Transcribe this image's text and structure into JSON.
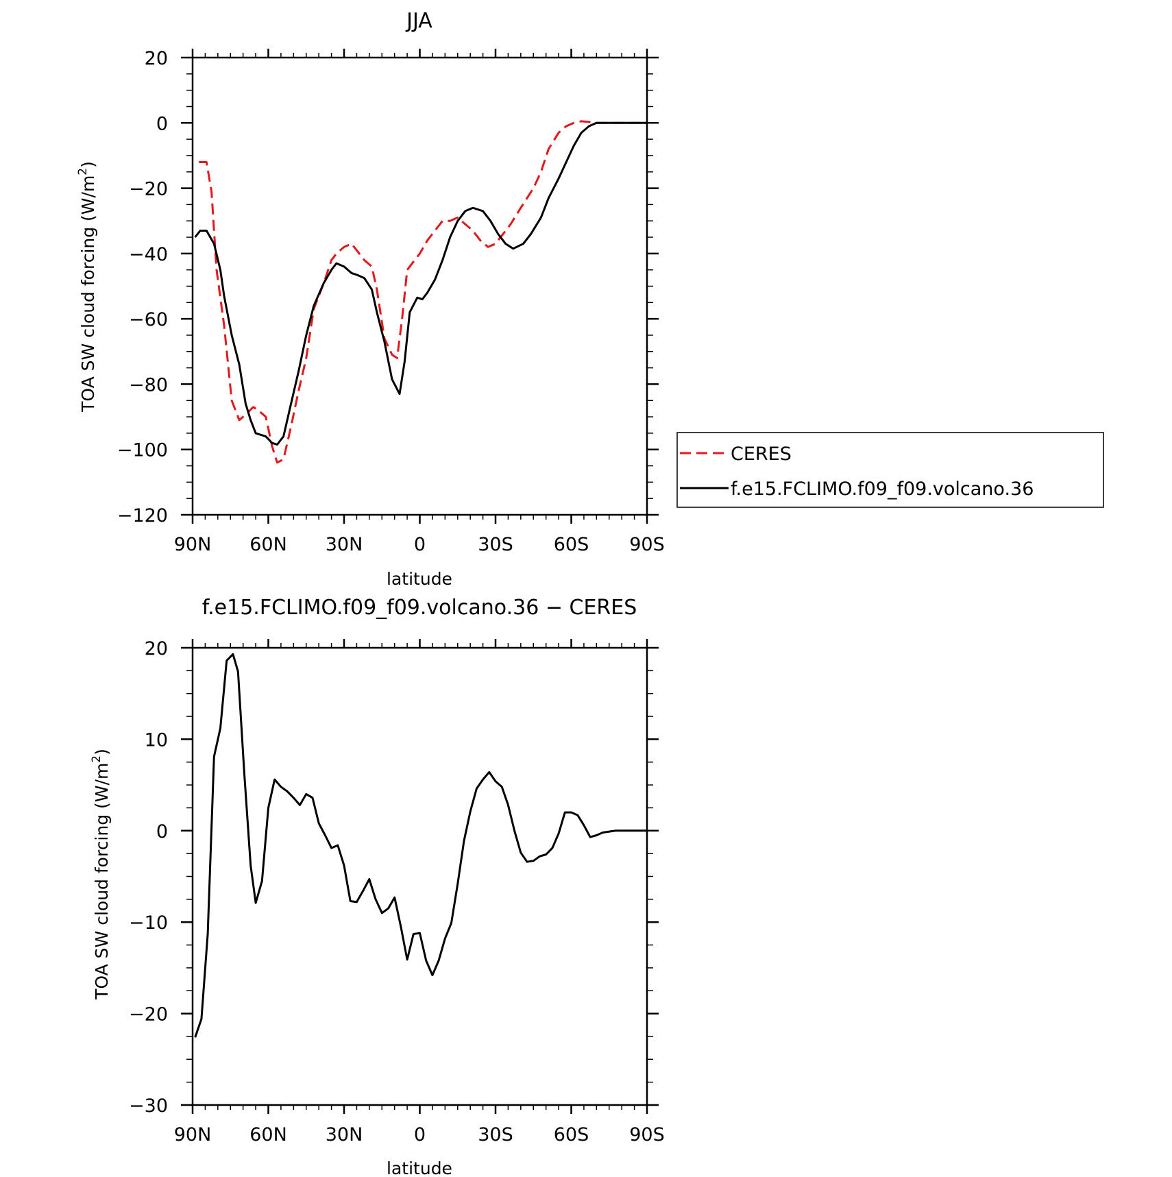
{
  "chart_data": [
    {
      "type": "line",
      "title": "JJA",
      "xlabel": "latitude",
      "ylabel": "TOA SW cloud forcing (W/m",
      "ylabel_superscript": "2",
      "ylabel_suffix": ")",
      "xlim": [
        90,
        -90
      ],
      "ylim": [
        -120,
        20
      ],
      "grid": false,
      "legend_position": "right-bottom outside",
      "x_ticks": [
        {
          "value": 90,
          "label": "90N"
        },
        {
          "value": 60,
          "label": "60N"
        },
        {
          "value": 30,
          "label": "30N"
        },
        {
          "value": 0,
          "label": "0"
        },
        {
          "value": -30,
          "label": "30S"
        },
        {
          "value": -60,
          "label": "60S"
        },
        {
          "value": -90,
          "label": "90S"
        }
      ],
      "y_ticks": [
        {
          "value": 20,
          "label": "20"
        },
        {
          "value": 0,
          "label": "0"
        },
        {
          "value": -20,
          "label": "−20"
        },
        {
          "value": -40,
          "label": "−40"
        },
        {
          "value": -60,
          "label": "−60"
        },
        {
          "value": -80,
          "label": "−80"
        },
        {
          "value": -100,
          "label": "−100"
        },
        {
          "value": -120,
          "label": "−120"
        }
      ],
      "series": [
        {
          "name": "CERES",
          "color": "#e3191c",
          "style": "dashed",
          "x": [
            87.5,
            84.5,
            82.5,
            80.5,
            77.5,
            74.5,
            71.5,
            68.5,
            66,
            64,
            61,
            58.5,
            56.5,
            54,
            51,
            48,
            45,
            42,
            38,
            35,
            33,
            30,
            27,
            25,
            22,
            19,
            17,
            14,
            11,
            9,
            7,
            5,
            3,
            1,
            0,
            -3,
            -6,
            -9,
            -12,
            -15,
            -18,
            -21,
            -24,
            -27,
            -30,
            -33,
            -36,
            -40,
            -45,
            -48,
            -51,
            -55,
            -58,
            -61,
            -64,
            -67,
            -70,
            -73,
            -77,
            -80,
            -84,
            -87,
            -90
          ],
          "y": [
            -12,
            -12,
            -21,
            -45,
            -62,
            -85,
            -91,
            -89,
            -87,
            -88,
            -90,
            -99,
            -104,
            -103,
            -93,
            -82,
            -72,
            -57,
            -49,
            -42,
            -40,
            -38,
            -37,
            -39,
            -42,
            -44,
            -51,
            -66,
            -71,
            -72,
            -60,
            -45,
            -43,
            -41,
            -40,
            -36,
            -33,
            -30,
            -30,
            -29,
            -31,
            -33,
            -36,
            -38,
            -37,
            -34,
            -31,
            -26,
            -20,
            -15,
            -8,
            -3,
            -1,
            0,
            0.5,
            0.3,
            0,
            0,
            0,
            0,
            0,
            0,
            0
          ]
        },
        {
          "name": "f.e15.FCLIMO.f09_f09.volcano.36",
          "color": "#000000",
          "style": "solid",
          "x": [
            89,
            87,
            84.5,
            81.5,
            79,
            77.5,
            74.5,
            71.5,
            69,
            67,
            65,
            61,
            58.5,
            56.5,
            54,
            51,
            48,
            45,
            42,
            38,
            35,
            33,
            30,
            27,
            25,
            22,
            19,
            17,
            14,
            11,
            8,
            6,
            4,
            1,
            -1,
            -3,
            -6,
            -9,
            -12,
            -15,
            -18,
            -21,
            -23,
            -25,
            -28,
            -31,
            -34,
            -37,
            -41,
            -44,
            -48,
            -51,
            -55,
            -58,
            -61,
            -64,
            -67,
            -70,
            -73,
            -76,
            -80,
            -84,
            -90
          ],
          "y": [
            -35,
            -33,
            -33,
            -37,
            -45,
            -53,
            -65,
            -74,
            -86,
            -91,
            -95,
            -96,
            -98,
            -98.5,
            -96,
            -86,
            -76,
            -65,
            -56,
            -49,
            -45,
            -43,
            -44,
            -46,
            -46.5,
            -47.5,
            -51,
            -58,
            -67,
            -78.5,
            -83,
            -73,
            -58,
            -53.5,
            -54,
            -52,
            -48,
            -42,
            -35,
            -30,
            -27,
            -26,
            -26.5,
            -27,
            -30,
            -34,
            -37,
            -38.5,
            -37,
            -34,
            -29,
            -23,
            -17,
            -12,
            -7,
            -3,
            -1,
            0,
            0,
            0,
            0,
            0,
            0
          ]
        }
      ]
    },
    {
      "type": "line",
      "title": "f.e15.FCLIMO.f09_f09.volcano.36 − CERES",
      "xlabel": "latitude",
      "ylabel": "TOA SW cloud forcing (W/m",
      "ylabel_superscript": "2",
      "ylabel_suffix": ")",
      "xlim": [
        90,
        -90
      ],
      "ylim": [
        -30,
        20
      ],
      "grid": false,
      "x_ticks": [
        {
          "value": 90,
          "label": "90N"
        },
        {
          "value": 60,
          "label": "60N"
        },
        {
          "value": 30,
          "label": "30N"
        },
        {
          "value": 0,
          "label": "0"
        },
        {
          "value": -30,
          "label": "30S"
        },
        {
          "value": -60,
          "label": "60S"
        },
        {
          "value": -90,
          "label": "90S"
        }
      ],
      "y_ticks": [
        {
          "value": 20,
          "label": "20"
        },
        {
          "value": 10,
          "label": "10"
        },
        {
          "value": 0,
          "label": "0"
        },
        {
          "value": -10,
          "label": "−10"
        },
        {
          "value": -20,
          "label": "−20"
        },
        {
          "value": -30,
          "label": "−30"
        }
      ],
      "series": [
        {
          "name": "",
          "color": "#000000",
          "style": "solid",
          "x": [
            89,
            86.5,
            84,
            81.5,
            79,
            76.5,
            74,
            72,
            69.5,
            67,
            65,
            62.5,
            60,
            57.5,
            55,
            52.5,
            50,
            47.5,
            45,
            42.5,
            40,
            37.5,
            35,
            32.5,
            30,
            27.5,
            25,
            22.5,
            20,
            17.5,
            15,
            12.5,
            10,
            7.5,
            5,
            2.5,
            0,
            -2.5,
            -5,
            -7.5,
            -10,
            -12.5,
            -15,
            -17.5,
            -20,
            -22.5,
            -25,
            -27.5,
            -30,
            -32.5,
            -35,
            -37.5,
            -40,
            -42.5,
            -45,
            -47.5,
            -50,
            -52.5,
            -55,
            -57.5,
            -60,
            -62.5,
            -65,
            -67.5,
            -70,
            -72.5,
            -75,
            -77.5,
            -80,
            -82.5,
            -85,
            -87.5,
            -90
          ],
          "y": [
            -22.6,
            -20.6,
            -11.3,
            8.1,
            11.2,
            18.6,
            19.3,
            17.4,
            6.2,
            -3.8,
            -7.9,
            -5.5,
            2.5,
            5.6,
            4.8,
            4.3,
            3.6,
            2.8,
            4,
            3.6,
            0.8,
            -0.5,
            -1.9,
            -1.6,
            -3.8,
            -7.7,
            -7.8,
            -6.6,
            -5.3,
            -7.5,
            -9,
            -8.5,
            -7.3,
            -10.5,
            -14.1,
            -11.3,
            -11.2,
            -14.2,
            -15.8,
            -14.2,
            -11.8,
            -10.1,
            -5.8,
            -1.1,
            2.1,
            4.6,
            5.6,
            6.4,
            5.4,
            4.8,
            2.8,
            0,
            -2.4,
            -3.4,
            -3.3,
            -2.8,
            -2.6,
            -1.9,
            -0.3,
            2,
            2,
            1.7,
            0.6,
            -0.7,
            -0.5,
            -0.2,
            -0.1,
            0,
            0,
            0,
            0,
            0,
            0
          ]
        }
      ]
    }
  ]
}
